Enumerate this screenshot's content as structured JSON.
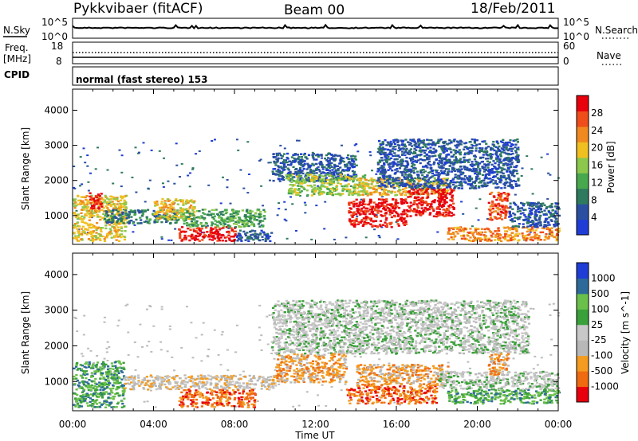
{
  "header": {
    "station": "Pykkvibaer (fitACF)",
    "beam": "Beam 00",
    "date": "18/Feb/2011"
  },
  "status_panels": {
    "nsky_label": "N.Sky",
    "nsky_ticks": [
      "10^5",
      "10^0"
    ],
    "nsearch_label": "N.Search",
    "nsearch_ticks": [
      "10^5",
      "10^0"
    ],
    "freq_label_line1": "Freq.",
    "freq_label_line2": "[MHz]",
    "freq_ticks": [
      "18",
      "8"
    ],
    "nave_label": "Nave",
    "nave_ticks": [
      "60",
      "0"
    ],
    "cpid_label": "CPID",
    "cpid_text": "normal (fast stereo) 153"
  },
  "colors": {
    "power_scale": [
      "#1f3dd6",
      "#2a4fa0",
      "#2e7a5e",
      "#47a84e",
      "#8cc84b",
      "#f0c020",
      "#f08a20",
      "#ef4d1a",
      "#e8000d"
    ],
    "velocity_scale": [
      "#e8000d",
      "#f06a10",
      "#f49c20",
      "#b8b8b8",
      "#c8c8c8",
      "#3aa03a",
      "#6ac04a",
      "#2d6a9a",
      "#1f3dd6"
    ],
    "noise_gray": "#bcbcbc"
  },
  "chart_data": [
    {
      "type": "heatmap",
      "panel": "power",
      "ylabel": "Slant Range [km]",
      "xlabel": "",
      "x_ticks": [
        "00:00",
        "04:00",
        "08:00",
        "12:00",
        "16:00",
        "20:00",
        "00:00"
      ],
      "y_ticks": [
        1000,
        2000,
        3000,
        4000
      ],
      "ylim": [
        180,
        4600
      ],
      "colorbar_label": "Power [dB]",
      "colorbar_ticks": [
        "28",
        "24",
        "20",
        "16",
        "12",
        "8",
        "4"
      ],
      "features": [
        {
          "t0": 0.0,
          "t1": 2.6,
          "r0": 300,
          "r1": 1600,
          "level": 5
        },
        {
          "t0": 0.8,
          "t1": 1.4,
          "r0": 1200,
          "r1": 1700,
          "level": 8
        },
        {
          "t0": 1.5,
          "t1": 5.2,
          "r0": 800,
          "r1": 1200,
          "level": 2
        },
        {
          "t0": 4.0,
          "t1": 6.0,
          "r0": 900,
          "r1": 1500,
          "level": 5
        },
        {
          "t0": 5.2,
          "t1": 8.0,
          "r0": 300,
          "r1": 700,
          "level": 8
        },
        {
          "t0": 5.4,
          "t1": 9.5,
          "r0": 700,
          "r1": 1200,
          "level": 3
        },
        {
          "t0": 8.0,
          "t1": 9.8,
          "r0": 300,
          "r1": 600,
          "level": 1
        },
        {
          "t0": 9.8,
          "t1": 14.0,
          "r0": 2000,
          "r1": 2800,
          "level": 1
        },
        {
          "t0": 10.5,
          "t1": 14.5,
          "r0": 1600,
          "r1": 2200,
          "level": 4
        },
        {
          "t0": 13.6,
          "t1": 16.5,
          "r0": 700,
          "r1": 1500,
          "level": 8
        },
        {
          "t0": 14.0,
          "t1": 18.5,
          "r0": 1600,
          "r1": 2100,
          "level": 5
        },
        {
          "t0": 16.5,
          "t1": 18.8,
          "r0": 1000,
          "r1": 1800,
          "level": 8
        },
        {
          "t0": 15.0,
          "t1": 22.0,
          "r0": 1800,
          "r1": 3200,
          "level": 1
        },
        {
          "t0": 18.5,
          "t1": 24.0,
          "r0": 300,
          "r1": 700,
          "level": 6
        },
        {
          "t0": 20.5,
          "t1": 21.5,
          "r0": 900,
          "r1": 1700,
          "level": 7
        },
        {
          "t0": 21.5,
          "t1": 24.0,
          "r0": 700,
          "r1": 1400,
          "level": 1
        }
      ]
    },
    {
      "type": "heatmap",
      "panel": "velocity",
      "ylabel": "Slant Range [km]",
      "xlabel": "Time UT",
      "x_ticks": [
        "00:00",
        "04:00",
        "08:00",
        "12:00",
        "16:00",
        "20:00",
        "00:00"
      ],
      "y_ticks": [
        1000,
        2000,
        3000,
        4000
      ],
      "ylim": [
        180,
        4600
      ],
      "colorbar_label": "Velocity [m s^-1]",
      "colorbar_ticks": [
        "1000",
        "500",
        "100",
        "25",
        "-25",
        "-100",
        "-500",
        "-1000"
      ],
      "features": [
        {
          "t0": 0.0,
          "t1": 2.5,
          "r0": 300,
          "r1": 1600,
          "level": 6
        },
        {
          "t0": 2.5,
          "t1": 10.0,
          "r0": 800,
          "r1": 1200,
          "level": 3
        },
        {
          "t0": 5.2,
          "t1": 9.0,
          "r0": 300,
          "r1": 800,
          "level": 1
        },
        {
          "t0": 9.8,
          "t1": 22.5,
          "r0": 1800,
          "r1": 3300,
          "level": 4
        },
        {
          "t0": 10.0,
          "t1": 13.5,
          "r0": 1000,
          "r1": 1800,
          "level": 2
        },
        {
          "t0": 13.5,
          "t1": 18.0,
          "r0": 400,
          "r1": 900,
          "level": 1
        },
        {
          "t0": 14.0,
          "t1": 18.5,
          "r0": 900,
          "r1": 1500,
          "level": 2
        },
        {
          "t0": 18.5,
          "t1": 24.0,
          "r0": 400,
          "r1": 800,
          "level": 6
        },
        {
          "t0": 18.0,
          "t1": 24.0,
          "r0": 800,
          "r1": 1300,
          "level": 4
        },
        {
          "t0": 20.5,
          "t1": 21.5,
          "r0": 1200,
          "r1": 1800,
          "level": 2
        }
      ]
    }
  ]
}
